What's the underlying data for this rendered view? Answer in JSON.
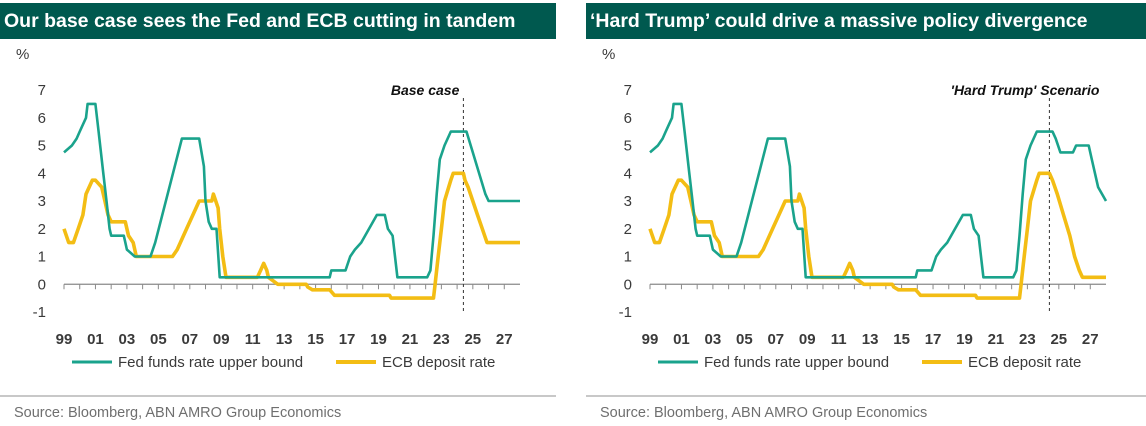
{
  "colors": {
    "title_bg": "#00594f",
    "fed": "#1aa38c",
    "ecb": "#f3bd14"
  },
  "source": "Source: Bloomberg, ABN AMRO Group Economics",
  "chart_data": [
    {
      "type": "line",
      "title": "Our base case sees the Fed and ECB cutting in tandem",
      "ylabel": "%",
      "annotation": "Base case",
      "annotation_x": 2024.4,
      "ylim": [
        -1,
        7
      ],
      "xlim": [
        1999,
        2028
      ],
      "yticks": [
        "-1",
        "0",
        "1",
        "2",
        "3",
        "4",
        "5",
        "6",
        "7"
      ],
      "xticks": [
        "99",
        "01",
        "03",
        "05",
        "07",
        "09",
        "11",
        "13",
        "15",
        "17",
        "19",
        "21",
        "23",
        "25",
        "27"
      ],
      "legend": "bottom",
      "series": [
        {
          "name": "Fed funds rate upper bound",
          "points": [
            [
              1999,
              4.75
            ],
            [
              1999.5,
              5.0
            ],
            [
              1999.8,
              5.25
            ],
            [
              2000.0,
              5.5
            ],
            [
              2000.4,
              6.0
            ],
            [
              2000.5,
              6.5
            ],
            [
              2001.0,
              6.5
            ],
            [
              2001.2,
              5.5
            ],
            [
              2001.5,
              4.0
            ],
            [
              2001.7,
              3.0
            ],
            [
              2001.9,
              2.0
            ],
            [
              2002.0,
              1.75
            ],
            [
              2002.8,
              1.75
            ],
            [
              2003.0,
              1.25
            ],
            [
              2003.5,
              1.0
            ],
            [
              2004.5,
              1.0
            ],
            [
              2004.8,
              1.5
            ],
            [
              2006.5,
              5.25
            ],
            [
              2007.6,
              5.25
            ],
            [
              2007.9,
              4.25
            ],
            [
              2008.0,
              3.0
            ],
            [
              2008.2,
              2.25
            ],
            [
              2008.4,
              2.0
            ],
            [
              2008.7,
              2.0
            ],
            [
              2008.9,
              0.25
            ],
            [
              2015.9,
              0.25
            ],
            [
              2016.0,
              0.5
            ],
            [
              2016.9,
              0.5
            ],
            [
              2017.2,
              1.0
            ],
            [
              2017.5,
              1.25
            ],
            [
              2017.9,
              1.5
            ],
            [
              2018.9,
              2.5
            ],
            [
              2019.4,
              2.5
            ],
            [
              2019.6,
              2.0
            ],
            [
              2019.9,
              1.75
            ],
            [
              2020.2,
              0.25
            ],
            [
              2022.1,
              0.25
            ],
            [
              2022.3,
              0.5
            ],
            [
              2022.5,
              1.75
            ],
            [
              2022.7,
              3.25
            ],
            [
              2022.9,
              4.5
            ],
            [
              2023.2,
              5.0
            ],
            [
              2023.6,
              5.5
            ],
            [
              2024.6,
              5.5
            ],
            [
              2025.0,
              4.75
            ],
            [
              2025.4,
              4.0
            ],
            [
              2025.8,
              3.25
            ],
            [
              2026.0,
              3.0
            ],
            [
              2028.0,
              3.0
            ]
          ]
        },
        {
          "name": "ECB deposit rate",
          "points": [
            [
              1999,
              2.0
            ],
            [
              1999.3,
              1.5
            ],
            [
              1999.6,
              1.5
            ],
            [
              1999.9,
              2.0
            ],
            [
              2000.2,
              2.5
            ],
            [
              2000.4,
              3.25
            ],
            [
              2000.8,
              3.75
            ],
            [
              2001.0,
              3.75
            ],
            [
              2001.4,
              3.5
            ],
            [
              2001.6,
              3.0
            ],
            [
              2001.8,
              2.5
            ],
            [
              2002.0,
              2.25
            ],
            [
              2002.9,
              2.25
            ],
            [
              2003.1,
              1.75
            ],
            [
              2003.4,
              1.5
            ],
            [
              2003.6,
              1.0
            ],
            [
              2005.9,
              1.0
            ],
            [
              2006.2,
              1.25
            ],
            [
              2006.8,
              2.0
            ],
            [
              2007.4,
              2.75
            ],
            [
              2007.6,
              3.0
            ],
            [
              2008.4,
              3.0
            ],
            [
              2008.5,
              3.25
            ],
            [
              2008.8,
              2.75
            ],
            [
              2008.9,
              2.0
            ],
            [
              2009.1,
              1.0
            ],
            [
              2009.3,
              0.25
            ],
            [
              2011.3,
              0.25
            ],
            [
              2011.5,
              0.5
            ],
            [
              2011.7,
              0.75
            ],
            [
              2011.9,
              0.5
            ],
            [
              2012.0,
              0.25
            ],
            [
              2012.6,
              0.0
            ],
            [
              2014.4,
              0.0
            ],
            [
              2014.5,
              -0.1
            ],
            [
              2014.8,
              -0.2
            ],
            [
              2015.9,
              -0.2
            ],
            [
              2016.2,
              -0.4
            ],
            [
              2019.7,
              -0.4
            ],
            [
              2019.8,
              -0.5
            ],
            [
              2022.5,
              -0.5
            ],
            [
              2022.6,
              0.0
            ],
            [
              2022.75,
              0.75
            ],
            [
              2022.9,
              1.5
            ],
            [
              2023.0,
              2.0
            ],
            [
              2023.2,
              3.0
            ],
            [
              2023.6,
              3.75
            ],
            [
              2023.75,
              4.0
            ],
            [
              2024.4,
              4.0
            ],
            [
              2024.5,
              3.75
            ],
            [
              2024.7,
              3.5
            ],
            [
              2025.0,
              3.0
            ],
            [
              2025.3,
              2.5
            ],
            [
              2025.6,
              2.0
            ],
            [
              2025.9,
              1.5
            ],
            [
              2028.0,
              1.5
            ]
          ]
        }
      ]
    },
    {
      "type": "line",
      "title": "‘Hard Trump’ could drive a massive policy divergence",
      "ylabel": "%",
      "annotation": "'Hard Trump' Scenario",
      "annotation_x": 2024.4,
      "ylim": [
        -1,
        7
      ],
      "xlim": [
        1999,
        2028
      ],
      "yticks": [
        "-1",
        "0",
        "1",
        "2",
        "3",
        "4",
        "5",
        "6",
        "7"
      ],
      "xticks": [
        "99",
        "01",
        "03",
        "05",
        "07",
        "09",
        "11",
        "13",
        "15",
        "17",
        "19",
        "21",
        "23",
        "25",
        "27"
      ],
      "legend": "bottom",
      "series": [
        {
          "name": "Fed funds rate upper bound",
          "points": [
            [
              1999,
              4.75
            ],
            [
              1999.5,
              5.0
            ],
            [
              1999.8,
              5.25
            ],
            [
              2000.0,
              5.5
            ],
            [
              2000.4,
              6.0
            ],
            [
              2000.5,
              6.5
            ],
            [
              2001.0,
              6.5
            ],
            [
              2001.2,
              5.5
            ],
            [
              2001.5,
              4.0
            ],
            [
              2001.7,
              3.0
            ],
            [
              2001.9,
              2.0
            ],
            [
              2002.0,
              1.75
            ],
            [
              2002.8,
              1.75
            ],
            [
              2003.0,
              1.25
            ],
            [
              2003.5,
              1.0
            ],
            [
              2004.5,
              1.0
            ],
            [
              2004.8,
              1.5
            ],
            [
              2006.5,
              5.25
            ],
            [
              2007.6,
              5.25
            ],
            [
              2007.9,
              4.25
            ],
            [
              2008.0,
              3.0
            ],
            [
              2008.2,
              2.25
            ],
            [
              2008.4,
              2.0
            ],
            [
              2008.7,
              2.0
            ],
            [
              2008.9,
              0.25
            ],
            [
              2015.9,
              0.25
            ],
            [
              2016.0,
              0.5
            ],
            [
              2016.9,
              0.5
            ],
            [
              2017.2,
              1.0
            ],
            [
              2017.5,
              1.25
            ],
            [
              2017.9,
              1.5
            ],
            [
              2018.9,
              2.5
            ],
            [
              2019.4,
              2.5
            ],
            [
              2019.6,
              2.0
            ],
            [
              2019.9,
              1.75
            ],
            [
              2020.2,
              0.25
            ],
            [
              2022.1,
              0.25
            ],
            [
              2022.3,
              0.5
            ],
            [
              2022.5,
              1.75
            ],
            [
              2022.7,
              3.25
            ],
            [
              2022.9,
              4.5
            ],
            [
              2023.2,
              5.0
            ],
            [
              2023.6,
              5.5
            ],
            [
              2024.6,
              5.5
            ],
            [
              2024.8,
              5.25
            ],
            [
              2025.1,
              4.75
            ],
            [
              2025.9,
              4.75
            ],
            [
              2026.1,
              5.0
            ],
            [
              2026.9,
              5.0
            ],
            [
              2027.1,
              4.5
            ],
            [
              2027.5,
              3.5
            ],
            [
              2028.0,
              3.0
            ]
          ]
        },
        {
          "name": "ECB deposit rate",
          "points": [
            [
              1999,
              2.0
            ],
            [
              1999.3,
              1.5
            ],
            [
              1999.6,
              1.5
            ],
            [
              1999.9,
              2.0
            ],
            [
              2000.2,
              2.5
            ],
            [
              2000.4,
              3.25
            ],
            [
              2000.8,
              3.75
            ],
            [
              2001.0,
              3.75
            ],
            [
              2001.4,
              3.5
            ],
            [
              2001.6,
              3.0
            ],
            [
              2001.8,
              2.5
            ],
            [
              2002.0,
              2.25
            ],
            [
              2002.9,
              2.25
            ],
            [
              2003.1,
              1.75
            ],
            [
              2003.4,
              1.5
            ],
            [
              2003.6,
              1.0
            ],
            [
              2005.9,
              1.0
            ],
            [
              2006.2,
              1.25
            ],
            [
              2006.8,
              2.0
            ],
            [
              2007.4,
              2.75
            ],
            [
              2007.6,
              3.0
            ],
            [
              2008.4,
              3.0
            ],
            [
              2008.5,
              3.25
            ],
            [
              2008.8,
              2.75
            ],
            [
              2008.9,
              2.0
            ],
            [
              2009.1,
              1.0
            ],
            [
              2009.3,
              0.25
            ],
            [
              2011.3,
              0.25
            ],
            [
              2011.5,
              0.5
            ],
            [
              2011.7,
              0.75
            ],
            [
              2011.9,
              0.5
            ],
            [
              2012.0,
              0.25
            ],
            [
              2012.6,
              0.0
            ],
            [
              2014.4,
              0.0
            ],
            [
              2014.5,
              -0.1
            ],
            [
              2014.8,
              -0.2
            ],
            [
              2015.9,
              -0.2
            ],
            [
              2016.2,
              -0.4
            ],
            [
              2019.7,
              -0.4
            ],
            [
              2019.8,
              -0.5
            ],
            [
              2022.5,
              -0.5
            ],
            [
              2022.6,
              0.0
            ],
            [
              2022.75,
              0.75
            ],
            [
              2022.9,
              1.5
            ],
            [
              2023.0,
              2.0
            ],
            [
              2023.2,
              3.0
            ],
            [
              2023.6,
              3.75
            ],
            [
              2023.75,
              4.0
            ],
            [
              2024.4,
              4.0
            ],
            [
              2024.6,
              3.75
            ],
            [
              2024.9,
              3.25
            ],
            [
              2025.3,
              2.5
            ],
            [
              2025.7,
              1.75
            ],
            [
              2026.0,
              1.0
            ],
            [
              2026.3,
              0.5
            ],
            [
              2026.5,
              0.25
            ],
            [
              2028.0,
              0.25
            ]
          ]
        }
      ]
    }
  ]
}
